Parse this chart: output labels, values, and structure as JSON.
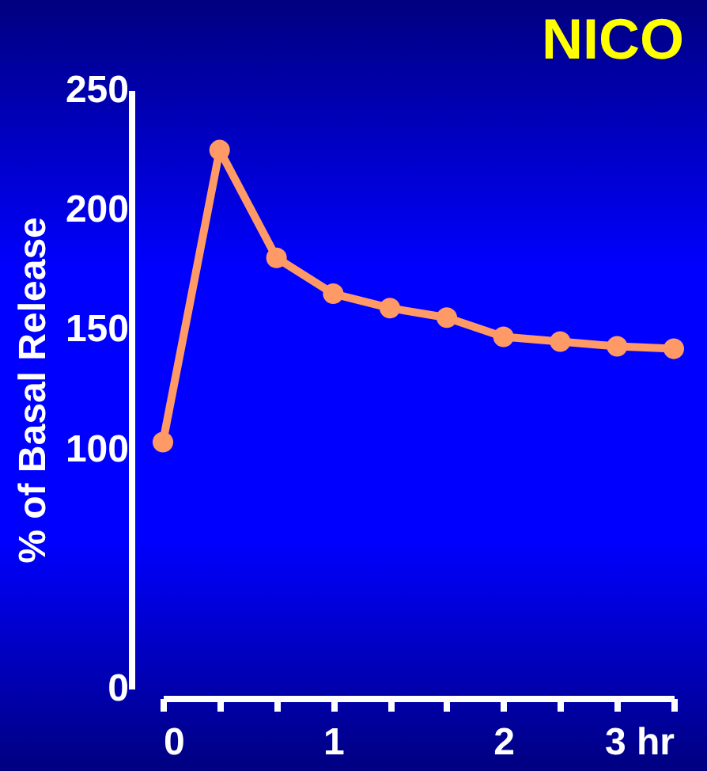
{
  "chart_data": {
    "type": "line",
    "title": "NICO",
    "ylabel": "% of Basal Release",
    "x": [
      0,
      0.333,
      0.667,
      1,
      1.333,
      1.667,
      2,
      2.333,
      2.667,
      3
    ],
    "series": [
      {
        "color": "#ff9966",
        "values": [
          103,
          225,
          180,
          165,
          159,
          155,
          147,
          145,
          143,
          142
        ]
      }
    ],
    "xlim": [
      0,
      3
    ],
    "xticks": [
      0,
      {
        "value": 0.333,
        "label": null
      },
      {
        "value": 0.667,
        "label": null
      },
      1,
      {
        "value": 1.333,
        "label": null
      },
      {
        "value": 1.667,
        "label": null
      },
      2,
      {
        "value": 2.333,
        "label": null
      },
      {
        "value": 2.667,
        "label": null
      },
      {
        "value": 3,
        "label": "3 hr"
      }
    ],
    "ylim": [
      0,
      250
    ],
    "yticks": [
      0,
      100,
      150,
      200,
      250
    ],
    "marker": "circle",
    "line_style": "solid",
    "grid": false
  }
}
